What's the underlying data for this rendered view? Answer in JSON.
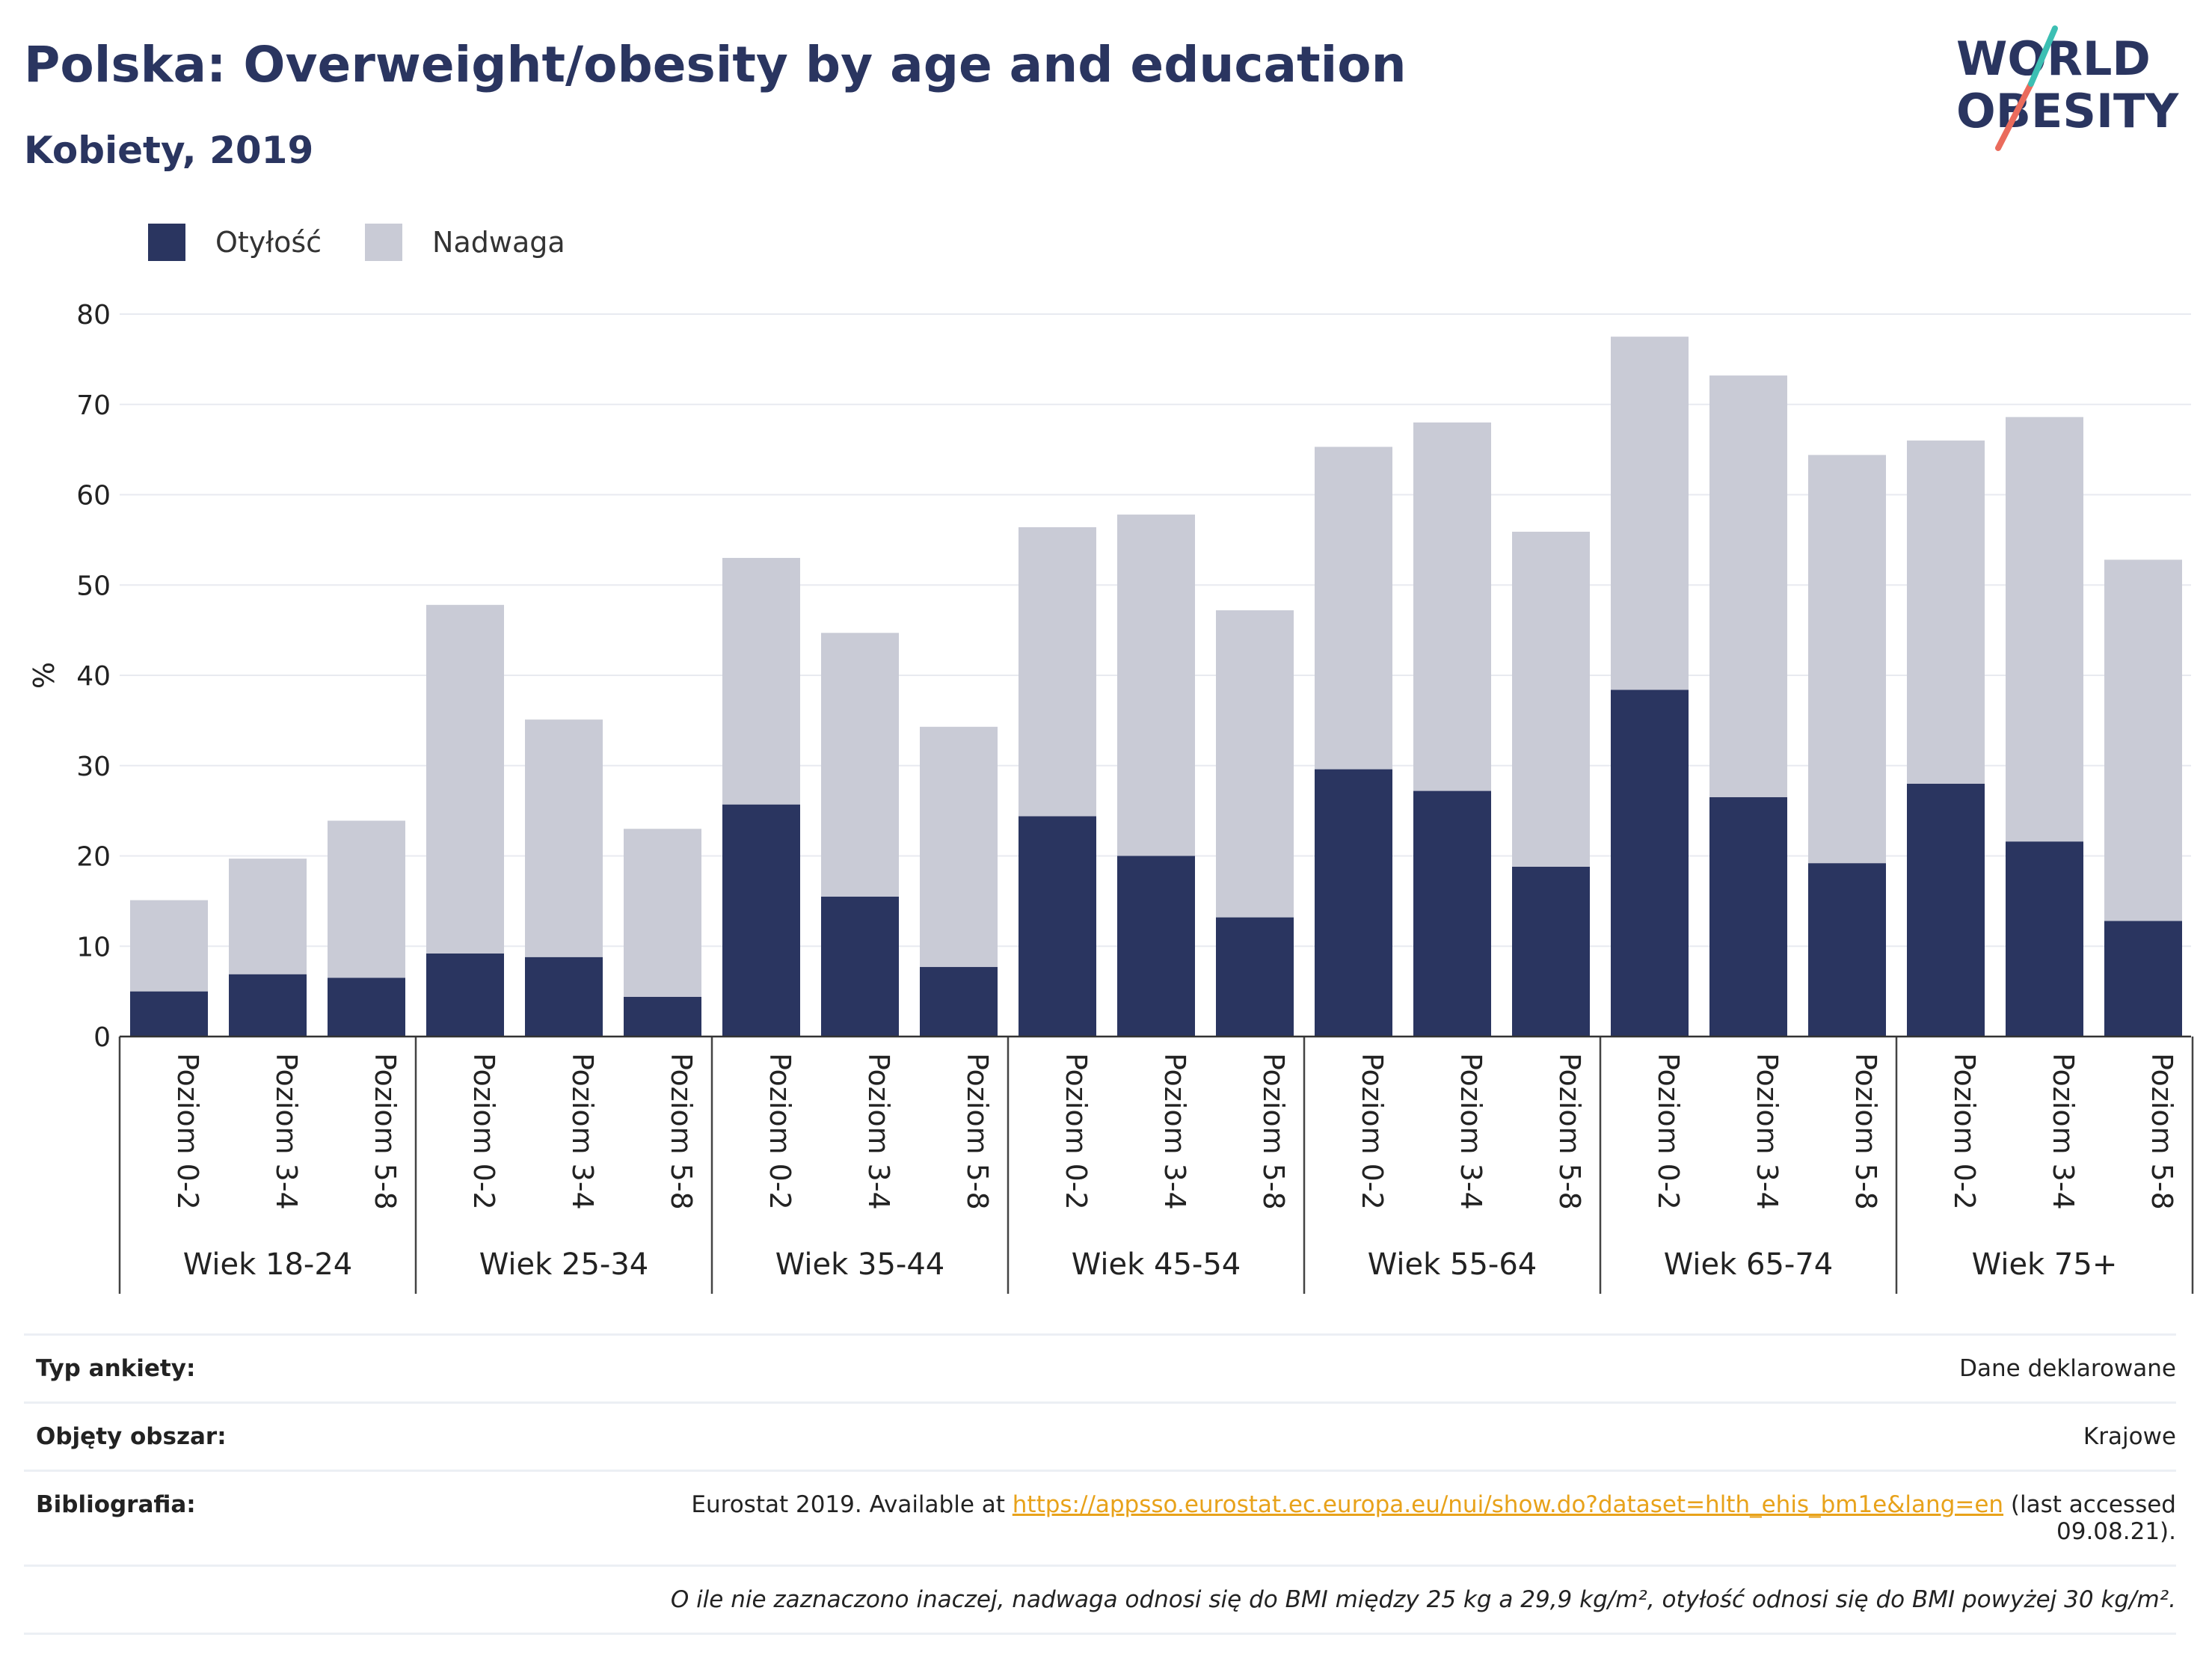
{
  "header": {
    "title": "Polska: Overweight/obesity by age and education",
    "subtitle": "Kobiety, 2019"
  },
  "logo": {
    "line1": "WORLD",
    "line2": "OBESITY"
  },
  "colors": {
    "obesity": "#2a3560",
    "overweight": "#c9cbd6",
    "text": "#2a3560",
    "link": "#e8a21a"
  },
  "chart_data": {
    "type": "bar",
    "stacked": true,
    "ylabel": "%",
    "ylim": [
      0,
      80
    ],
    "yticks": [
      0,
      10,
      20,
      30,
      40,
      50,
      60,
      70,
      80
    ],
    "grid": true,
    "legend_position": "top-left",
    "groups": [
      "Wiek 18-24",
      "Wiek 25-34",
      "Wiek 35-44",
      "Wiek 45-54",
      "Wiek 55-64",
      "Wiek 65-74",
      "Wiek 75+"
    ],
    "subcategories": [
      "Poziom 0-2",
      "Poziom 3-4",
      "Poziom 5-8"
    ],
    "series": [
      {
        "name": "Otyłość",
        "values": [
          5.0,
          6.9,
          6.5,
          9.2,
          8.8,
          4.4,
          25.7,
          15.5,
          7.7,
          24.4,
          20.0,
          13.2,
          29.6,
          27.2,
          18.8,
          38.4,
          26.5,
          19.2,
          28.0,
          21.6,
          12.8
        ]
      },
      {
        "name": "Nadwaga",
        "values": [
          10.1,
          12.8,
          17.4,
          38.6,
          26.3,
          18.6,
          27.3,
          29.2,
          26.6,
          32.0,
          37.8,
          34.0,
          35.7,
          40.8,
          37.1,
          39.1,
          46.7,
          45.2,
          38.0,
          47.0,
          40.0
        ]
      }
    ]
  },
  "info": {
    "survey_label": "Typ ankiety:",
    "survey_value": "Dane deklarowane",
    "area_label": "Objęty obszar:",
    "area_value": "Krajowe",
    "bib_label": "Bibliografia:",
    "bib_prefix": "Eurostat 2019. Available at ",
    "bib_link": "https://appsso.eurostat.ec.europa.eu/nui/show.do?dataset=hlth_ehis_bm1e&lang=en",
    "bib_suffix": " (last accessed 09.08.21).",
    "note": "O ile nie zaznaczono inaczej, nadwaga odnosi się do BMI między 25 kg a 29,9 kg/m², otyłość odnosi się do BMI powyżej 30 kg/m²."
  }
}
